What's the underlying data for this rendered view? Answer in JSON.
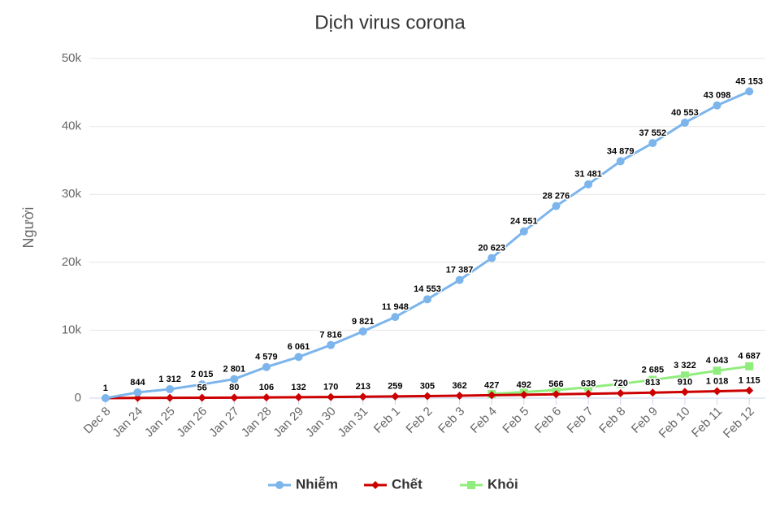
{
  "chart_data": {
    "type": "line",
    "title": "Dịch virus corona",
    "y_label": "Người",
    "categories": [
      "Dec 8",
      "Jan 24",
      "Jan 25",
      "Jan 26",
      "Jan 27",
      "Jan 28",
      "Jan 29",
      "Jan 30",
      "Jan 31",
      "Feb 1",
      "Feb 2",
      "Feb 3",
      "Feb 4",
      "Feb 5",
      "Feb 6",
      "Feb 7",
      "Feb 8",
      "Feb 9",
      "Feb 10",
      "Feb 11",
      "Feb 12"
    ],
    "ylim": [
      0,
      50000
    ],
    "yticks": [
      0,
      {
        "value": 10000,
        "label": "10k"
      },
      {
        "value": 20000,
        "label": "20k"
      },
      {
        "value": 30000,
        "label": "30k"
      },
      {
        "value": 40000,
        "label": "40k"
      },
      {
        "value": 50000,
        "label": "50k"
      }
    ],
    "grid": true,
    "legend": "bottom",
    "series": [
      {
        "name": "Nhiễm",
        "color": "#7cb5ec",
        "marker": "circle",
        "values": [
          1,
          844,
          1312,
          2015,
          2801,
          4579,
          6061,
          7816,
          9821,
          11948,
          14553,
          17387,
          20623,
          24551,
          28276,
          31481,
          34879,
          37552,
          40553,
          43098,
          45153
        ],
        "value_labels": [
          "1",
          "844",
          "1 312",
          "2 015",
          "2 801",
          "4 579",
          "6 061",
          "7 816",
          "9 821",
          "11 948",
          "14 553",
          "17 387",
          "20 623",
          "24 551",
          "28 276",
          "31 481",
          "34 879",
          "37 552",
          "40 553",
          "43 098",
          "45 153"
        ]
      },
      {
        "name": "Chết",
        "color": "#cc0000",
        "marker": "diamond",
        "values": [
          0,
          25,
          41,
          56,
          80,
          106,
          132,
          170,
          213,
          259,
          305,
          362,
          427,
          492,
          566,
          638,
          720,
          813,
          910,
          1018,
          1115
        ],
        "value_labels": [
          null,
          null,
          null,
          "56",
          "80",
          "106",
          "132",
          "170",
          "213",
          "259",
          "305",
          "362",
          "427",
          "492",
          "566",
          "638",
          "720",
          "813",
          "910",
          "1 018",
          "1 115"
        ]
      },
      {
        "name": "Khỏi",
        "color": "#90ed7d",
        "marker": "square",
        "values": [
          null,
          null,
          null,
          null,
          null,
          null,
          null,
          null,
          null,
          null,
          null,
          null,
          600,
          900,
          1200,
          1600,
          2100,
          2685,
          3322,
          4043,
          4687
        ],
        "value_labels": [
          null,
          null,
          null,
          null,
          null,
          null,
          null,
          null,
          null,
          null,
          null,
          null,
          null,
          null,
          null,
          null,
          null,
          "2 685",
          "3 322",
          "4 043",
          "4 687"
        ]
      }
    ]
  }
}
